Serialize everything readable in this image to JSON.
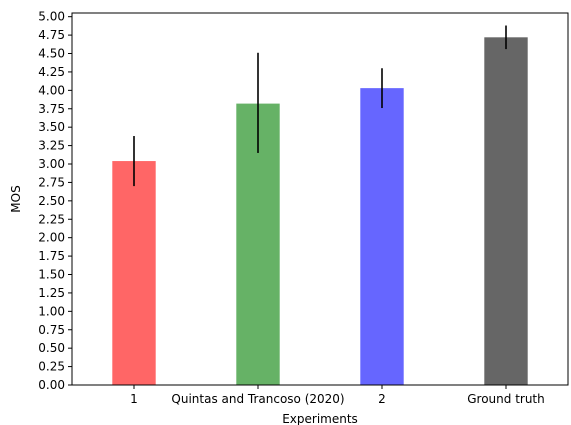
{
  "chart_data": {
    "type": "bar",
    "title": "",
    "xlabel": "Experiments",
    "ylabel": "MOS",
    "categories": [
      "1",
      "Quintas and Trancoso (2020)",
      "2",
      "Ground truth"
    ],
    "values": [
      3.04,
      3.82,
      4.03,
      4.72
    ],
    "error_low": [
      2.7,
      3.15,
      3.76,
      4.56
    ],
    "error_high": [
      3.38,
      4.51,
      4.3,
      4.88
    ],
    "colors": [
      "#ff6666",
      "#66b266",
      "#6666ff",
      "#666666"
    ],
    "ylim": [
      0,
      5.05
    ],
    "yticks": [
      "0.00",
      "0.25",
      "0.50",
      "0.75",
      "1.00",
      "1.25",
      "1.50",
      "1.75",
      "2.00",
      "2.25",
      "2.50",
      "2.75",
      "3.00",
      "3.25",
      "3.50",
      "3.75",
      "4.00",
      "4.25",
      "4.50",
      "4.75",
      "5.00"
    ],
    "grid": false,
    "legend": "none"
  }
}
